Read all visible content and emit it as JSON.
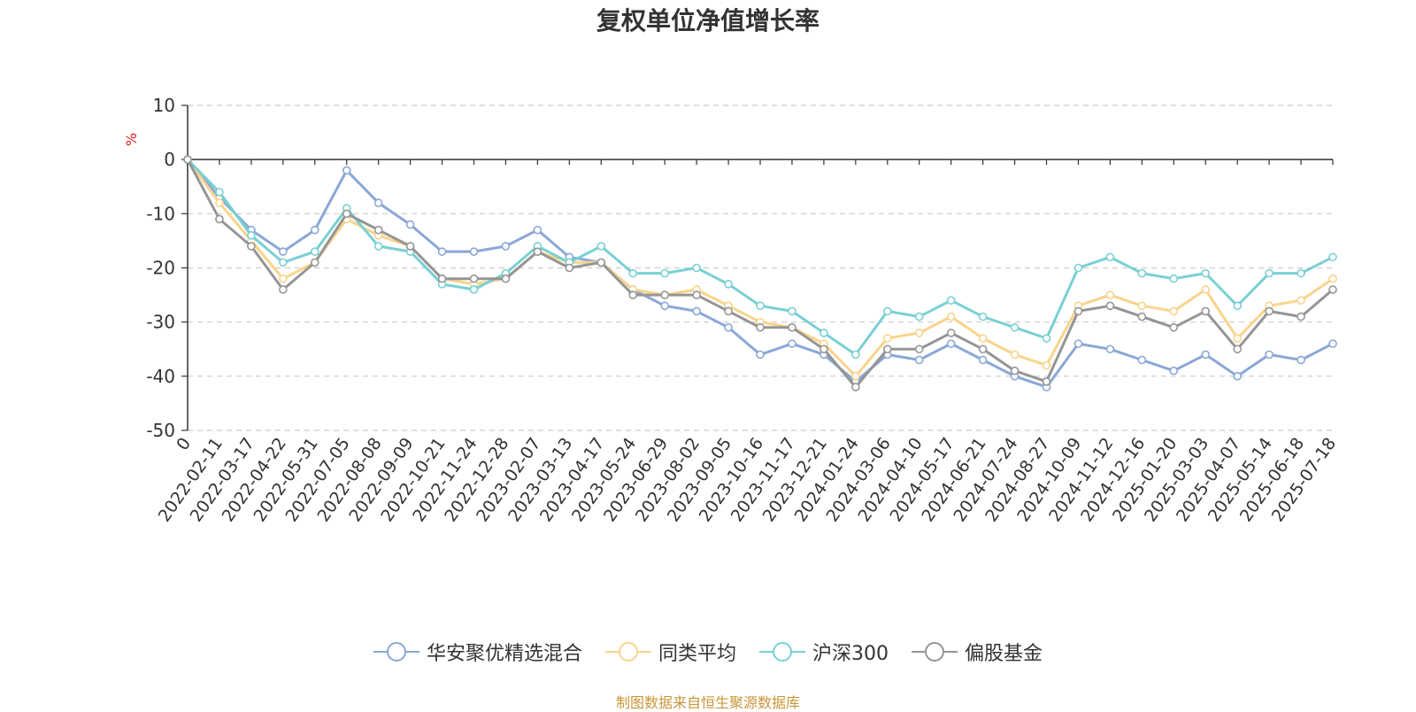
{
  "chart_data": {
    "type": "line",
    "title": "复权单位净值增长率",
    "unit": "%",
    "ylim": [
      -50,
      10
    ],
    "yticks": [
      10,
      0,
      -10,
      -20,
      -30,
      -40,
      -50
    ],
    "grid": true,
    "legend_position": "bottom-center",
    "x": [
      "0",
      "2022-02-11",
      "2022-03-17",
      "2022-04-22",
      "2022-05-31",
      "2022-07-05",
      "2022-08-08",
      "2022-09-09",
      "2022-10-21",
      "2022-11-24",
      "2022-12-28",
      "2023-02-07",
      "2023-03-13",
      "2023-04-17",
      "2023-05-24",
      "2023-06-29",
      "2023-08-02",
      "2023-09-05",
      "2023-10-16",
      "2023-11-17",
      "2023-12-21",
      "2024-01-24",
      "2024-03-06",
      "2024-04-10",
      "2024-05-17",
      "2024-06-21",
      "2024-07-24",
      "2024-08-27",
      "2024-10-09",
      "2024-11-12",
      "2024-12-16",
      "2025-01-20",
      "2025-03-03",
      "2025-04-07",
      "2025-05-14",
      "2025-06-18",
      "2025-07-18"
    ],
    "series": [
      {
        "name": "华安聚优精选混合",
        "color": "#8aa7d6",
        "values": [
          0,
          -7,
          -13,
          -17,
          -13,
          -2,
          -8,
          -12,
          -17,
          -17,
          -16,
          -13,
          -18,
          -19,
          -24,
          -27,
          -28,
          -31,
          -36,
          -34,
          -36,
          -41,
          -36,
          -37,
          -34,
          -37,
          -40,
          -42,
          -34,
          -35,
          -37,
          -39,
          -36,
          -40,
          -36,
          -37,
          -34
        ]
      },
      {
        "name": "同类平均",
        "color": "#f9d48b",
        "values": [
          0,
          -8,
          -15,
          -22,
          -19,
          -11,
          -14,
          -16,
          -22,
          -23,
          -22,
          -17,
          -19,
          -19,
          -24,
          -25,
          -24,
          -27,
          -30,
          -31,
          -34,
          -40,
          -33,
          -32,
          -29,
          -33,
          -36,
          -38,
          -27,
          -25,
          -27,
          -28,
          -24,
          -33,
          -27,
          -26,
          -22
        ]
      },
      {
        "name": "沪深300",
        "color": "#79d0d3",
        "values": [
          0,
          -6,
          -14,
          -19,
          -17,
          -9,
          -16,
          -17,
          -23,
          -24,
          -21,
          -16,
          -19,
          -16,
          -21,
          -21,
          -20,
          -23,
          -27,
          -28,
          -32,
          -36,
          -28,
          -29,
          -26,
          -29,
          -31,
          -33,
          -20,
          -18,
          -21,
          -22,
          -21,
          -27,
          -21,
          -21,
          -18
        ]
      },
      {
        "name": "偏股基金",
        "color": "#959595",
        "values": [
          0,
          -11,
          -16,
          -24,
          -19,
          -10,
          -13,
          -16,
          -22,
          -22,
          -22,
          -17,
          -20,
          -19,
          -25,
          -25,
          -25,
          -28,
          -31,
          -31,
          -35,
          -42,
          -35,
          -35,
          -32,
          -35,
          -39,
          -41,
          -28,
          -27,
          -29,
          -31,
          -28,
          -35,
          -28,
          -29,
          -24
        ]
      }
    ]
  },
  "source": "制图数据来自恒生聚源数据库"
}
